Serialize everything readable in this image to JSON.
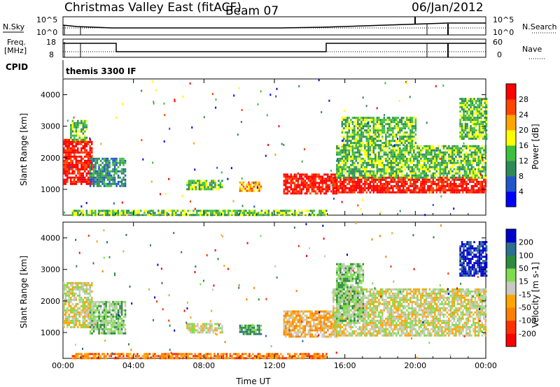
{
  "header": {
    "title": "Christmas Valley East (fitACF)",
    "beam": "Beam 07",
    "date": "06/Jan/2012"
  },
  "param_panels": {
    "nsky_label": "N.Sky",
    "nsearch_label": "N.Search",
    "freq_label_1": "Freq.",
    "freq_label_2": "[MHz]",
    "nave_label": "Nave",
    "cpid_label": "CPID",
    "cpid_value": "themis 3300 IF",
    "noise_ticks": [
      "10^5",
      "10^0"
    ],
    "freq_ticks": [
      "18",
      "8"
    ],
    "nave_ticks": [
      "60",
      "0"
    ]
  },
  "chart_data": [
    {
      "type": "heatmap",
      "name": "power",
      "xlabel": "Time UT",
      "ylabel": "Slant Range [km]",
      "x_ticks": [
        "00:00",
        "04:00",
        "08:00",
        "12:00",
        "16:00",
        "20:00",
        "00:00"
      ],
      "xlim_hours": [
        0,
        24
      ],
      "ylim_km": [
        180,
        4500
      ],
      "y_ticks": [
        1000,
        2000,
        3000,
        4000
      ],
      "colorbar": {
        "label": "Power [dB]",
        "ticks": [
          "4",
          "8",
          "12",
          "16",
          "20",
          "24",
          "28"
        ],
        "colors": [
          "#0000ff",
          "#2255cc",
          "#2e8b57",
          "#3fbf3f",
          "#ffff00",
          "#ffa500",
          "#ff4500",
          "#ff0000"
        ]
      },
      "regions": [
        {
          "t": [
            0.0,
            1.6
          ],
          "r": [
            1200,
            2600
          ],
          "level": 28
        },
        {
          "t": [
            0.4,
            1.3
          ],
          "r": [
            2600,
            3200
          ],
          "level": 10
        },
        {
          "t": [
            1.5,
            3.5
          ],
          "r": [
            1100,
            2000
          ],
          "level": 6
        },
        {
          "t": [
            7.0,
            9.0
          ],
          "r": [
            1000,
            1300
          ],
          "level": 10
        },
        {
          "t": [
            10.0,
            11.2
          ],
          "r": [
            950,
            1250
          ],
          "level": 18
        },
        {
          "t": [
            12.5,
            15.5
          ],
          "r": [
            850,
            1500
          ],
          "level": 26
        },
        {
          "t": [
            15.3,
            24.0
          ],
          "r": [
            900,
            1400
          ],
          "level": 28
        },
        {
          "t": [
            15.5,
            24.0
          ],
          "r": [
            1400,
            2400
          ],
          "level": 10
        },
        {
          "t": [
            15.8,
            20.0
          ],
          "r": [
            2400,
            3300
          ],
          "level": 10
        },
        {
          "t": [
            22.5,
            24.0
          ],
          "r": [
            2600,
            3900
          ],
          "level": 12
        },
        {
          "t": [
            0.5,
            15.0
          ],
          "r": [
            200,
            350
          ],
          "level": 10
        }
      ]
    },
    {
      "type": "heatmap",
      "name": "velocity",
      "xlabel": "Time UT",
      "ylabel": "Slant Range [km]",
      "x_ticks": [
        "00:00",
        "04:00",
        "08:00",
        "12:00",
        "16:00",
        "20:00",
        "00:00"
      ],
      "xlim_hours": [
        0,
        24
      ],
      "ylim_km": [
        180,
        4500
      ],
      "y_ticks": [
        1000,
        2000,
        3000,
        4000
      ],
      "colorbar": {
        "label": "Velocity [m s-1]",
        "ticks": [
          "200",
          "100",
          "50",
          "15",
          "-15",
          "-50",
          "-100",
          "-200"
        ],
        "colors": [
          "#0000cc",
          "#2e6e8e",
          "#2e8b3e",
          "#7fdc4f",
          "#c8c8c0",
          "#ffa500",
          "#ff7f00",
          "#ff3000",
          "#ff0000"
        ]
      },
      "regions": [
        {
          "t": [
            0.0,
            1.6
          ],
          "r": [
            1200,
            2600
          ],
          "v": 0
        },
        {
          "t": [
            1.5,
            3.5
          ],
          "r": [
            1000,
            2000
          ],
          "v": 40
        },
        {
          "t": [
            7.0,
            9.0
          ],
          "r": [
            1000,
            1300
          ],
          "v": 0
        },
        {
          "t": [
            10.0,
            11.2
          ],
          "r": [
            950,
            1250
          ],
          "v": 60
        },
        {
          "t": [
            12.5,
            15.5
          ],
          "r": [
            900,
            1700
          ],
          "v": -40
        },
        {
          "t": [
            15.3,
            24.0
          ],
          "r": [
            900,
            2400
          ],
          "v": 0
        },
        {
          "t": [
            15.5,
            17.0
          ],
          "r": [
            1400,
            3200
          ],
          "v": 30
        },
        {
          "t": [
            22.5,
            24.0
          ],
          "r": [
            2800,
            3900
          ],
          "v": 200
        },
        {
          "t": [
            0.5,
            15.0
          ],
          "r": [
            200,
            350
          ],
          "v": -60
        }
      ]
    }
  ]
}
